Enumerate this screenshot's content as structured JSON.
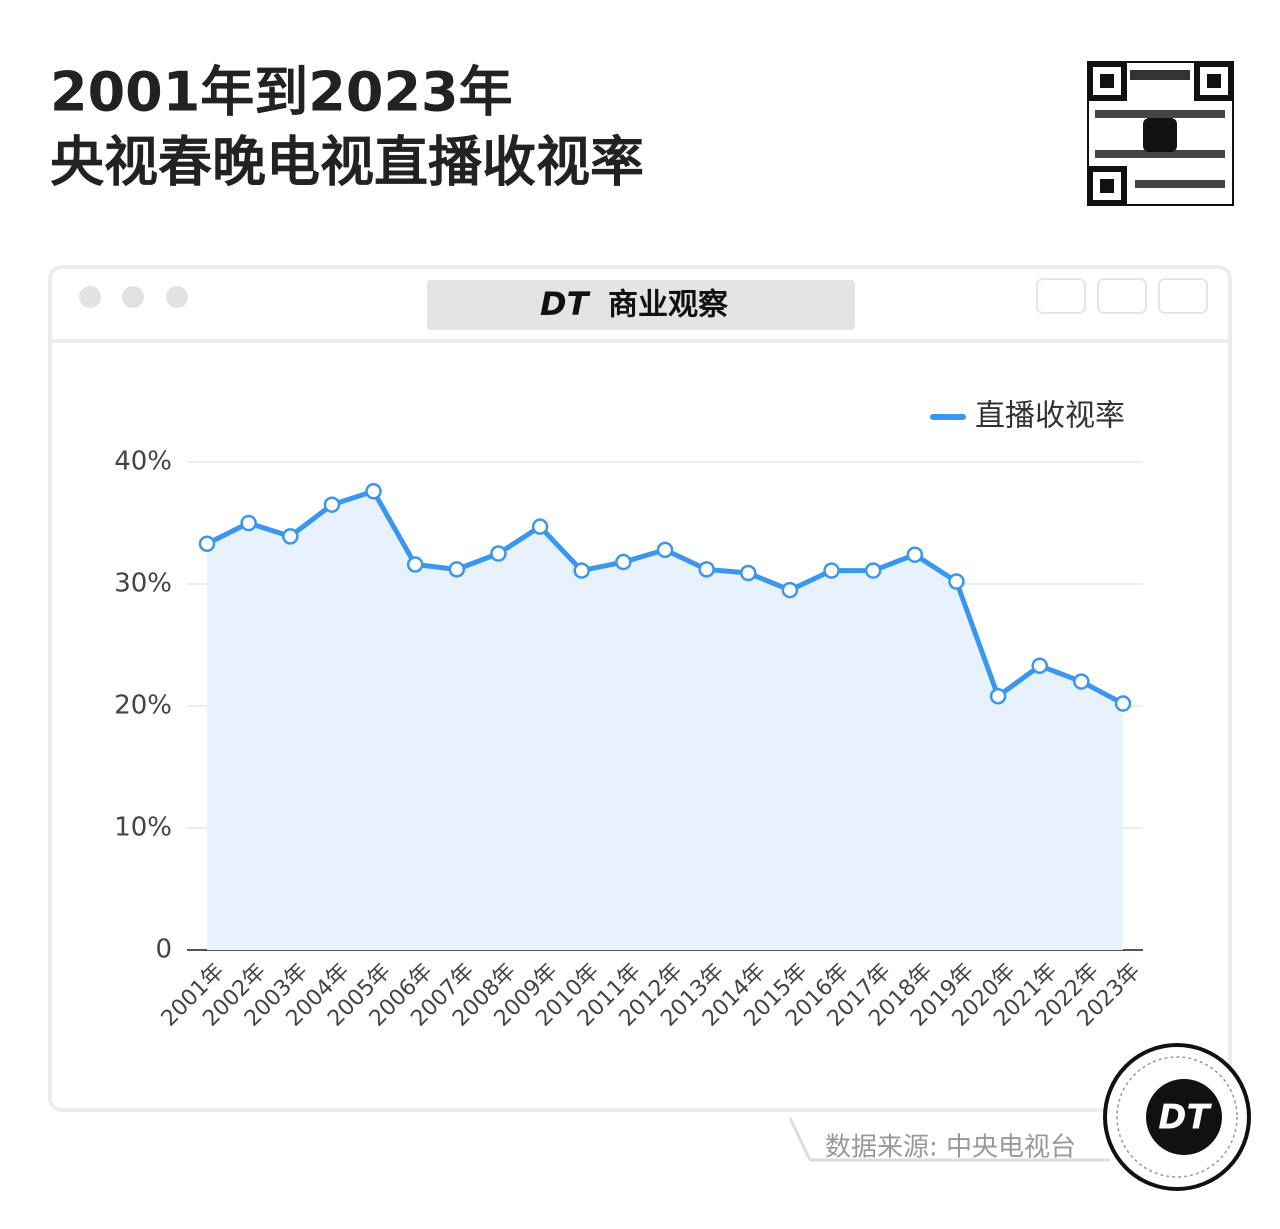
{
  "header": {
    "title_line1": "2001年到2023年",
    "title_line2": "央视春晚电视直播收视率",
    "window_title": "商业观察"
  },
  "chart_data": {
    "type": "line",
    "categories": [
      "2001年",
      "2002年",
      "2003年",
      "2004年",
      "2005年",
      "2006年",
      "2007年",
      "2008年",
      "2009年",
      "2010年",
      "2011年",
      "2012年",
      "2013年",
      "2014年",
      "2015年",
      "2016年",
      "2017年",
      "2018年",
      "2019年",
      "2020年",
      "2021年",
      "2022年",
      "2023年"
    ],
    "series": [
      {
        "name": "直播收视率",
        "color": "#3a96ee",
        "values": [
          33.3,
          35.0,
          33.9,
          36.5,
          37.6,
          31.6,
          31.2,
          32.5,
          34.7,
          31.1,
          31.8,
          32.8,
          31.2,
          30.9,
          29.5,
          31.1,
          31.1,
          32.4,
          30.2,
          20.8,
          23.3,
          22.0,
          20.2
        ]
      }
    ],
    "area_color": "#e8f2fc",
    "ylim": [
      0,
      40
    ],
    "yticks": [
      0,
      {
        "value": 10,
        "label": "10%"
      },
      {
        "value": 20,
        "label": "20%"
      },
      {
        "value": 30,
        "label": "30%"
      },
      {
        "value": 40,
        "label": "40%"
      }
    ],
    "grid": true,
    "legend": "top-right"
  },
  "footer": {
    "source": "数据来源: 中央电视台",
    "logo": "DT"
  }
}
